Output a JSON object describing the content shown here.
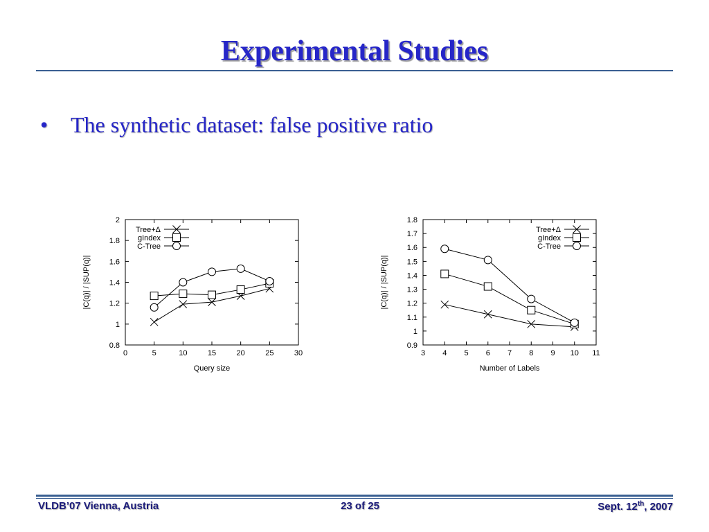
{
  "slide": {
    "title": "Experimental Studies",
    "bullet": "The synthetic dataset: false positive ratio"
  },
  "footer": {
    "left": "VLDB’07 Vienna, Austria",
    "center": "23 of 25",
    "right_pre": "Sept. 12",
    "right_sup": "th",
    "right_post": ", 2007"
  },
  "colors": {
    "title": "#2626c8",
    "footer": "#1b1b7a",
    "rule": "#3a5f92"
  },
  "chart_data": [
    {
      "type": "line",
      "xlabel": "Query size",
      "ylabel": "|C(q)| / |SUP(q)|",
      "xlim": [
        0,
        30
      ],
      "ylim": [
        0.8,
        2
      ],
      "xticks": [
        0,
        5,
        10,
        15,
        20,
        25,
        30
      ],
      "xtick_labels": [
        "0",
        "5",
        "10",
        "15",
        "20",
        "25",
        "30"
      ],
      "yticks": [
        0.8,
        1,
        1.2,
        1.4,
        1.6,
        1.8,
        2
      ],
      "ytick_labels": [
        "0.8",
        "1",
        "1.2",
        "1.4",
        "1.6",
        "1.8",
        "2"
      ],
      "legend_position": "top-left",
      "grid": false,
      "series": [
        {
          "name": "Tree+Δ",
          "marker": "x",
          "x": [
            5,
            10,
            15,
            20,
            25
          ],
          "values": [
            1.02,
            1.19,
            1.21,
            1.27,
            1.34
          ]
        },
        {
          "name": "gIndex",
          "marker": "square",
          "x": [
            5,
            10,
            15,
            20,
            25
          ],
          "values": [
            1.27,
            1.29,
            1.28,
            1.33,
            1.39
          ]
        },
        {
          "name": "C-Tree",
          "marker": "circle",
          "x": [
            5,
            10,
            15,
            20,
            25
          ],
          "values": [
            1.16,
            1.4,
            1.5,
            1.53,
            1.41
          ]
        }
      ]
    },
    {
      "type": "line",
      "xlabel": "Number of Labels",
      "ylabel": "|C(q)| / |SUP(q)|",
      "xlim": [
        3,
        11
      ],
      "ylim": [
        0.9,
        1.8
      ],
      "xticks": [
        3,
        4,
        5,
        6,
        7,
        8,
        9,
        10,
        11
      ],
      "xtick_labels": [
        "3",
        "4",
        "5",
        "6",
        "7",
        "8",
        "9",
        "10",
        "11"
      ],
      "yticks": [
        0.9,
        1,
        1.1,
        1.2,
        1.3,
        1.4,
        1.5,
        1.6,
        1.7,
        1.8
      ],
      "ytick_labels": [
        "0.9",
        "1",
        "1.1",
        "1.2",
        "1.3",
        "1.4",
        "1.5",
        "1.6",
        "1.7",
        "1.8"
      ],
      "legend_position": "top-right",
      "grid": false,
      "series": [
        {
          "name": "Tree+Δ",
          "marker": "x",
          "x": [
            4,
            6,
            8,
            10
          ],
          "values": [
            1.19,
            1.12,
            1.05,
            1.03
          ]
        },
        {
          "name": "gIndex",
          "marker": "square",
          "x": [
            4,
            6,
            8,
            10
          ],
          "values": [
            1.41,
            1.32,
            1.15,
            1.05
          ]
        },
        {
          "name": "C-Tree",
          "marker": "circle",
          "x": [
            4,
            6,
            8,
            10
          ],
          "values": [
            1.59,
            1.51,
            1.23,
            1.06
          ]
        }
      ]
    }
  ]
}
